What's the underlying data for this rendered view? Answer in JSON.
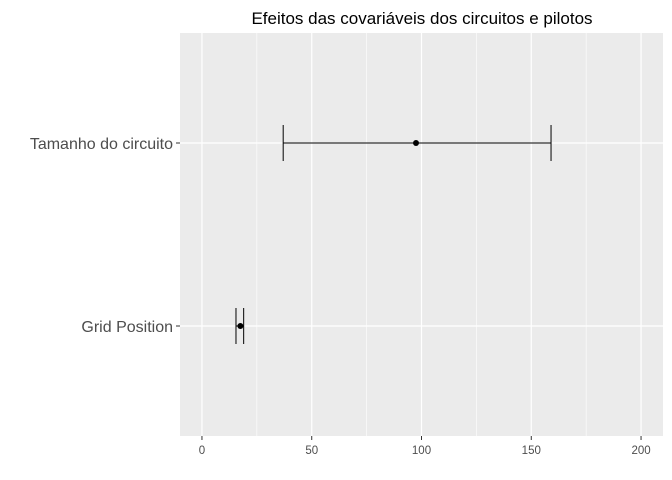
{
  "chart_data": {
    "type": "errorbar",
    "title": "Efeitos das covariáveis dos circuitos e pilotos",
    "xlabel": "",
    "ylabel": "",
    "xlim": [
      -10,
      210
    ],
    "x_ticks": [
      0,
      50,
      100,
      150,
      200
    ],
    "x_tick_labels": [
      "0",
      "50",
      "100",
      "150",
      "200"
    ],
    "grid": true,
    "colors": {
      "panel": "#ebebeb",
      "grid": "#ffffff",
      "mark": "#000000",
      "tick_text": "#4d4d4d"
    },
    "categories": [
      "Tamanho do circuito",
      "Grid Position"
    ],
    "estimates": [
      {
        "label": "Tamanho do circuito",
        "estimate": 97.5,
        "low": 37,
        "high": 159
      },
      {
        "label": "Grid Position",
        "estimate": 17.5,
        "low": 15.5,
        "high": 19
      }
    ]
  }
}
